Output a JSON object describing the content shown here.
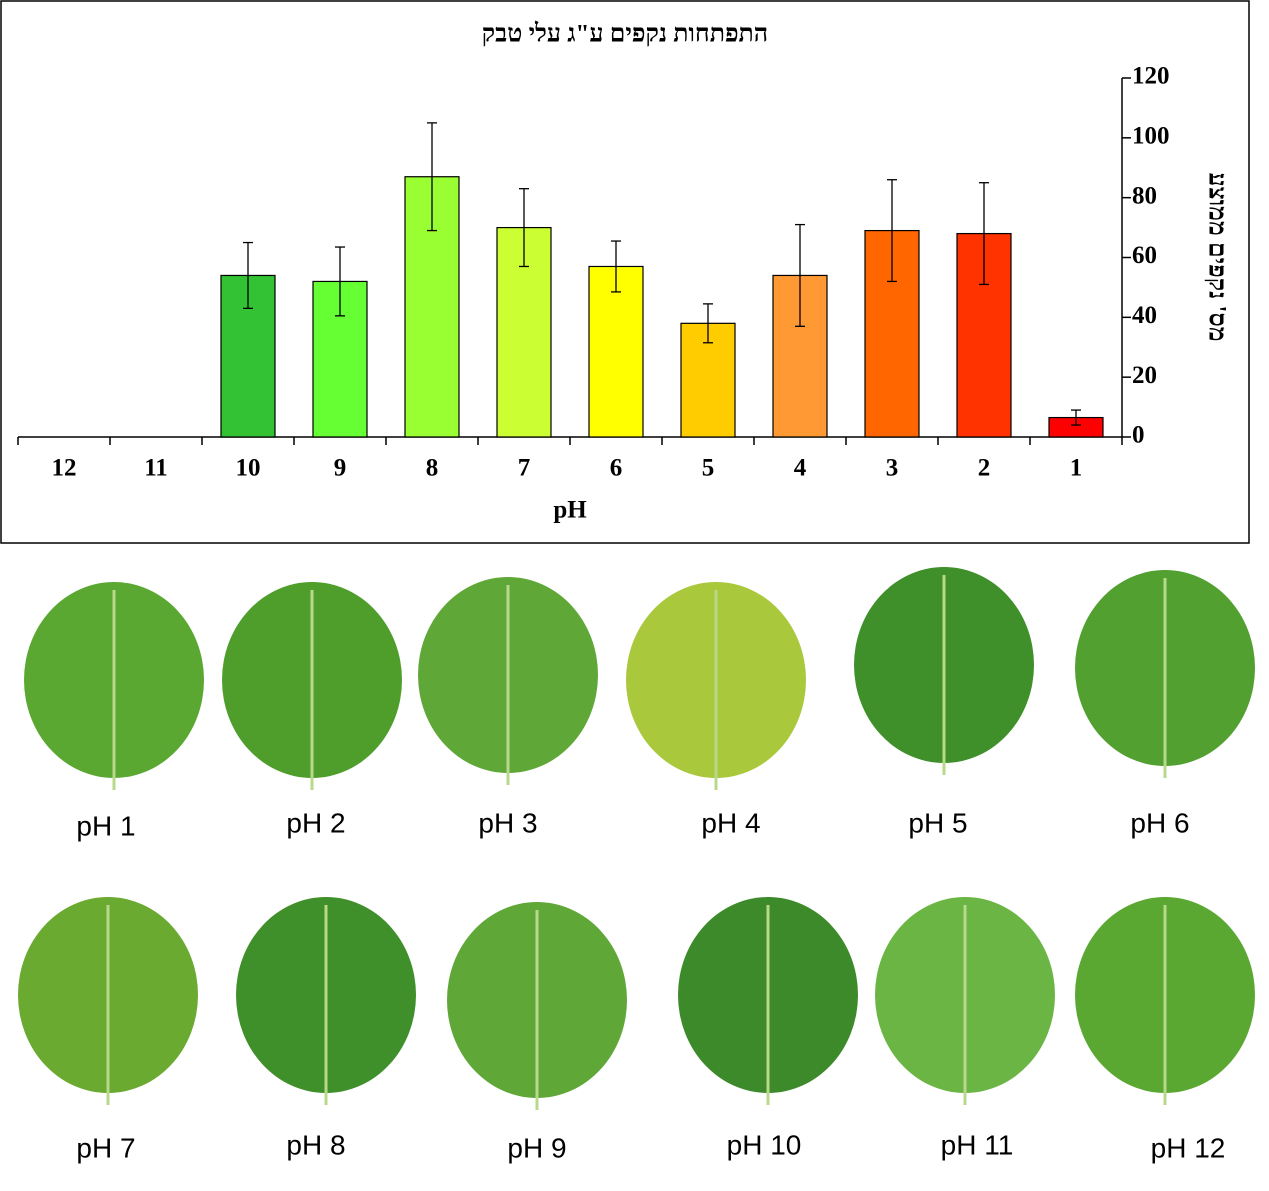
{
  "chart_data": {
    "type": "bar",
    "title": "התפתחות נקפים ע\"ג עלי טבק",
    "x_label": "pH",
    "y_label": "מס' נקפים ממוצע",
    "categories": [
      "12",
      "11",
      "10",
      "9",
      "8",
      "7",
      "6",
      "5",
      "4",
      "3",
      "2",
      "1"
    ],
    "values": [
      0,
      0,
      54,
      52,
      87,
      70,
      57,
      38,
      54,
      69,
      68,
      6.5
    ],
    "errors": [
      null,
      null,
      11,
      11.5,
      18,
      13,
      8.5,
      6.5,
      17,
      17,
      17,
      2.5
    ],
    "colors": [
      null,
      null,
      "#33c233",
      "#66ff33",
      "#99ff33",
      "#ccff33",
      "#ffff00",
      "#ffcc00",
      "#ff9933",
      "#ff6600",
      "#ff3300",
      "#ff0000"
    ],
    "ylim": [
      0,
      120
    ],
    "yticks": [
      0,
      20,
      40,
      60,
      80,
      100,
      120
    ],
    "y_axis_side": "right",
    "grid": false
  },
  "leaves": {
    "captions": [
      "pH 1",
      "pH 2",
      "pH 3",
      "pH 4",
      "pH 5",
      "pH 6",
      "pH 7",
      "pH 8",
      "pH 9",
      "pH 10",
      "pH 11",
      "pH 12"
    ]
  }
}
